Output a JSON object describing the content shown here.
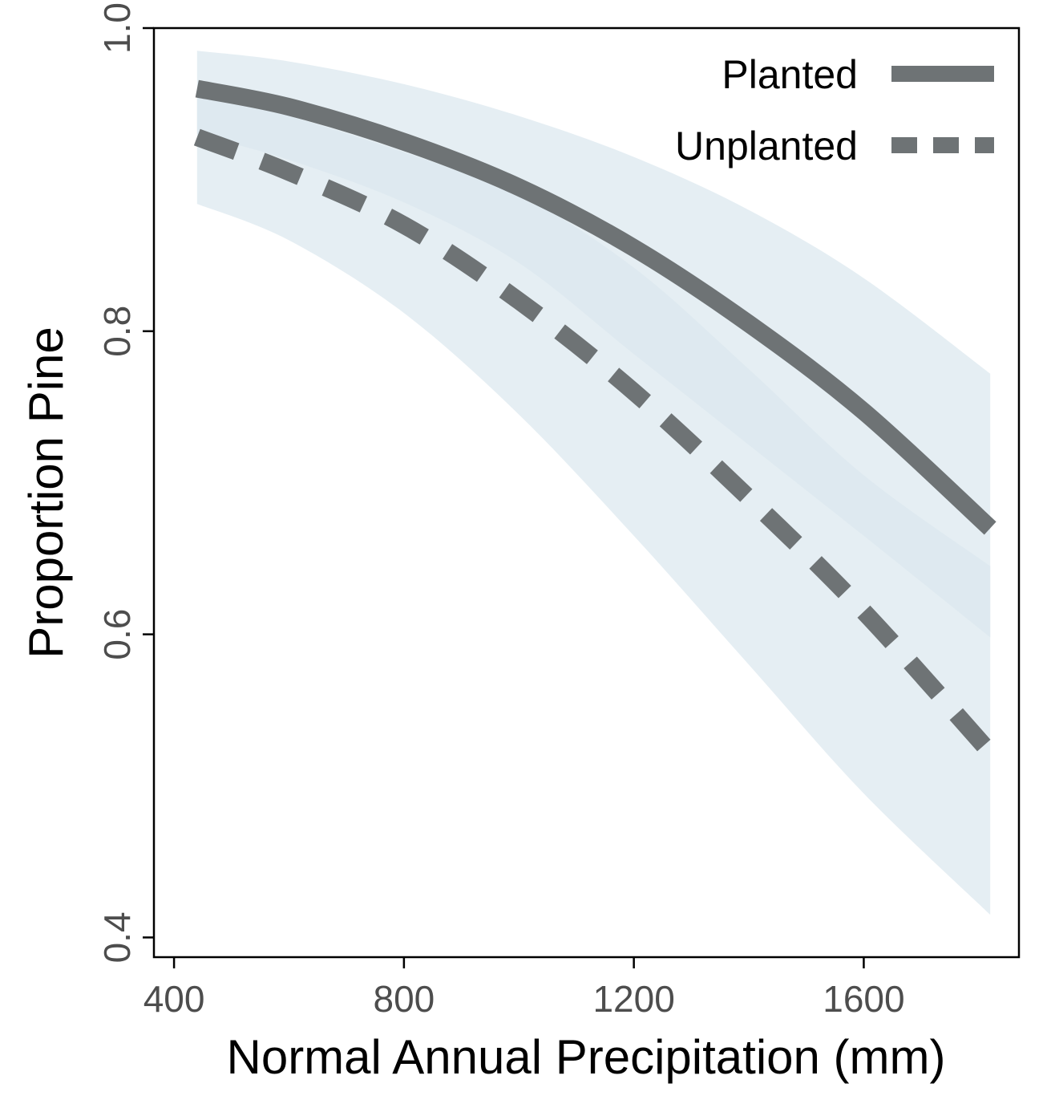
{
  "chart_data": {
    "type": "line",
    "xlabel": "Normal Annual Precipitation (mm)",
    "ylabel": "Proportion Pine",
    "xlim": [
      365,
      1870
    ],
    "ylim": [
      0.387,
      1.0
    ],
    "x_ticks": [
      400,
      800,
      1200,
      1600
    ],
    "x_tick_labels": [
      "400",
      "800",
      "1200",
      "1600"
    ],
    "y_ticks": [
      0.4,
      0.6,
      0.8,
      1.0
    ],
    "y_tick_labels": [
      "0.4",
      "0.6",
      "0.8",
      "1.0"
    ],
    "grid": false,
    "legend_position": "top-right",
    "colors": {
      "line": "#6e7375",
      "ribbon": "#dbe7ee",
      "axis": "#000000"
    },
    "series": [
      {
        "name": "Planted",
        "style": "solid",
        "x": [
          440,
          600,
          800,
          1000,
          1200,
          1400,
          1600,
          1820
        ],
        "y": [
          0.96,
          0.948,
          0.925,
          0.895,
          0.855,
          0.805,
          0.747,
          0.67
        ],
        "ci_lower": [
          0.93,
          0.913,
          0.885,
          0.845,
          0.785,
          0.725,
          0.665,
          0.598
        ],
        "ci_upper": [
          0.985,
          0.978,
          0.963,
          0.942,
          0.915,
          0.88,
          0.835,
          0.772
        ]
      },
      {
        "name": "Unplanted",
        "style": "dashed",
        "x": [
          440,
          600,
          800,
          1000,
          1200,
          1400,
          1600,
          1820
        ],
        "y": [
          0.928,
          0.905,
          0.87,
          0.82,
          0.76,
          0.69,
          0.615,
          0.522
        ],
        "ci_lower": [
          0.884,
          0.86,
          0.812,
          0.745,
          0.665,
          0.58,
          0.495,
          0.415
        ],
        "ci_upper": [
          0.958,
          0.942,
          0.918,
          0.89,
          0.842,
          0.775,
          0.705,
          0.645
        ]
      }
    ]
  }
}
